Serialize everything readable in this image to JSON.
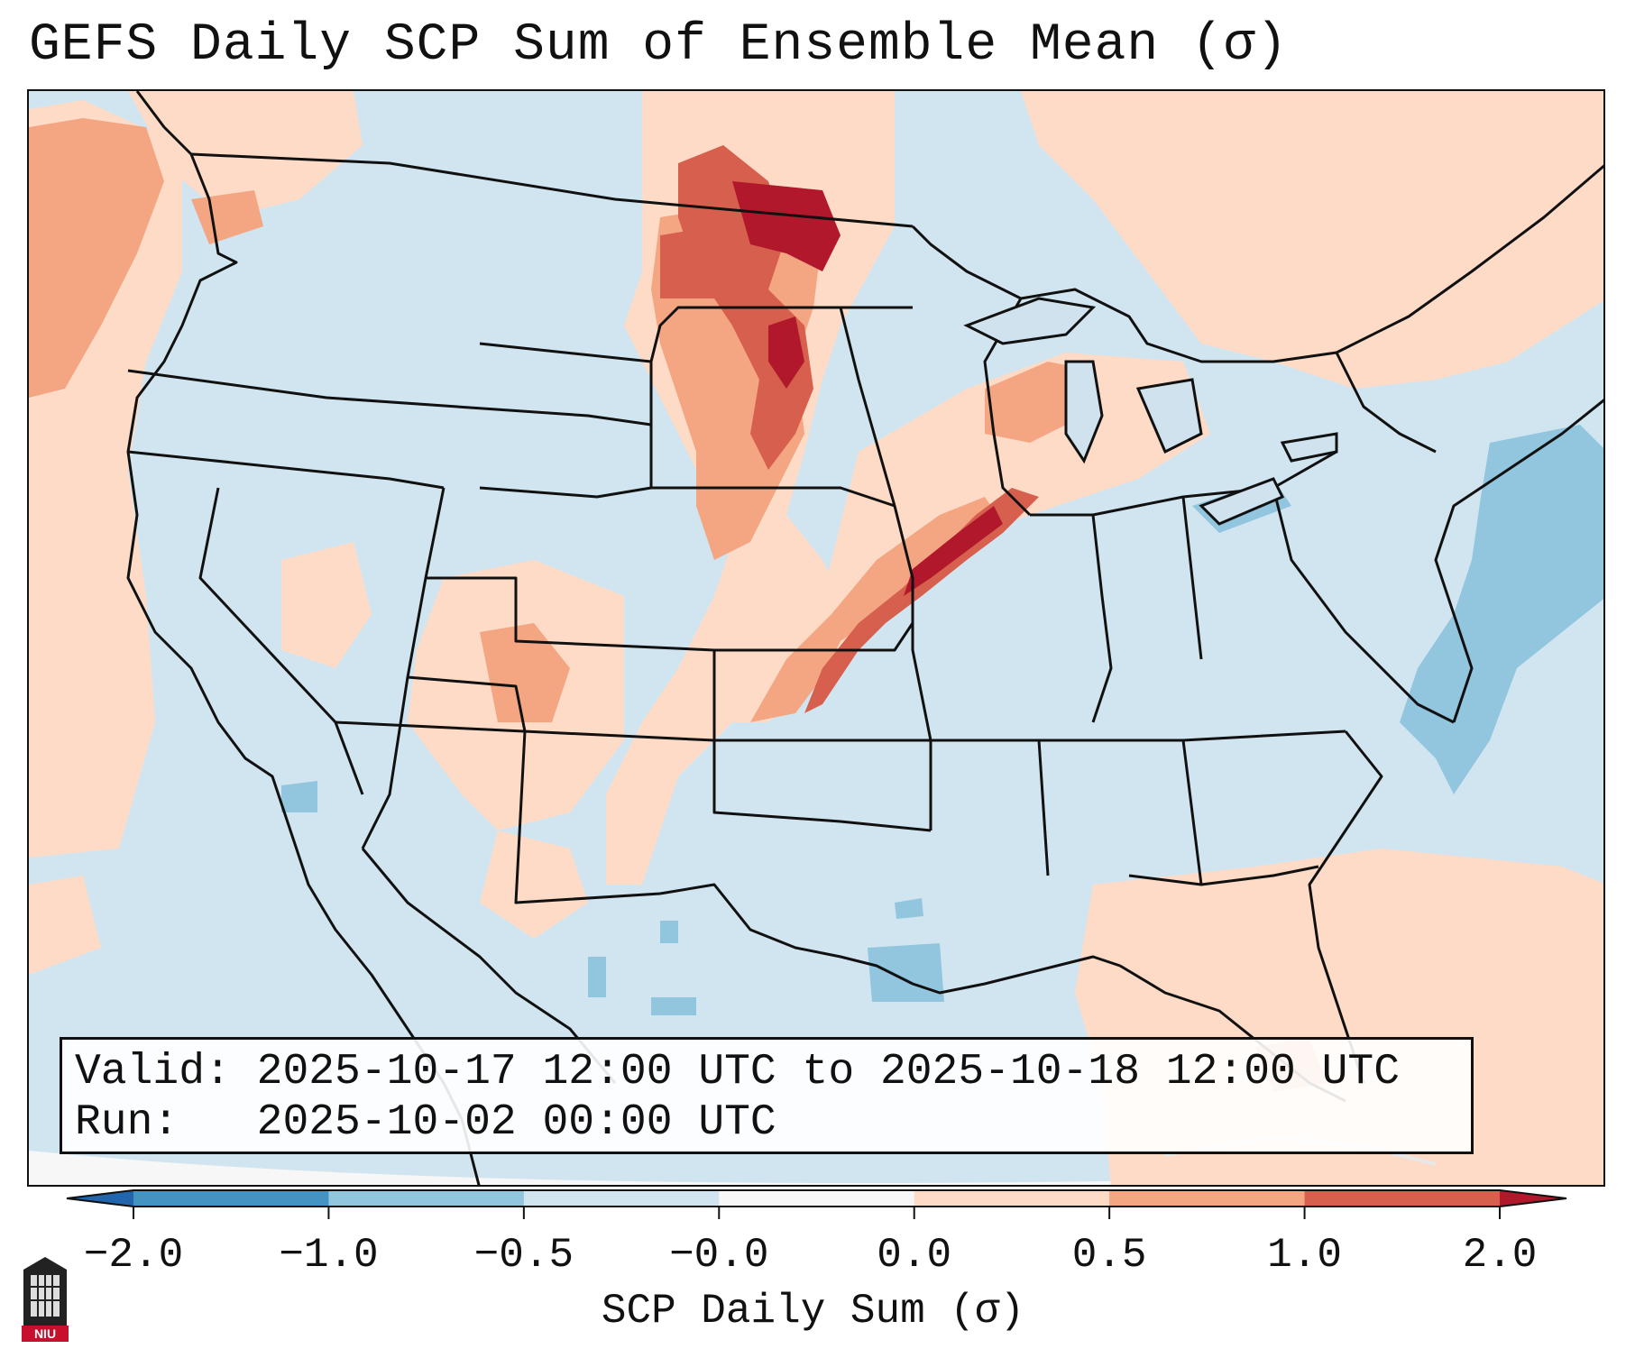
{
  "title": "GEFS Daily SCP Sum of Ensemble Mean (σ)",
  "info": {
    "valid_line": "Valid: 2025-10-17 12:00 UTC to 2025-10-18 12:00 UTC",
    "run_line": "Run:   2025-10-02 00:00 UTC"
  },
  "colorbar": {
    "label": "SCP Daily Sum (σ)",
    "ticks": [
      "−2.0",
      "−1.0",
      "−0.5",
      "−0.0",
      "0.0",
      "0.5",
      "1.0",
      "2.0"
    ],
    "colors": [
      "#4393c3",
      "#92c5de",
      "#d1e5f0",
      "#f7f7f7",
      "#fddbc7",
      "#f4a582",
      "#d6604d"
    ],
    "under_color": "#2166ac",
    "over_color": "#b2182b"
  },
  "logo": {
    "text": "NIU",
    "name": "niu-logo"
  },
  "map": {
    "background_color": "#cfe2ee",
    "ocean_edge_color": "#f4f7fa"
  }
}
